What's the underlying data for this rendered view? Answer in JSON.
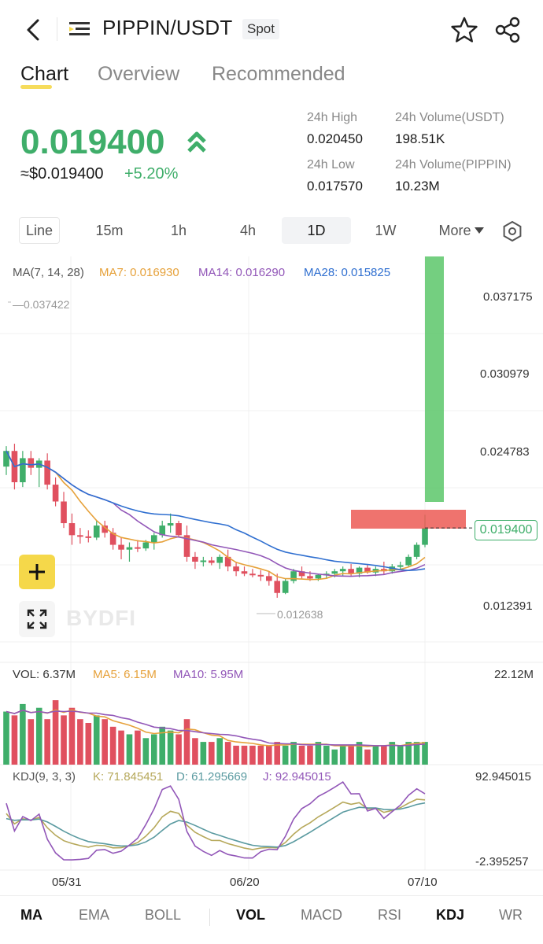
{
  "header": {
    "pair": "PIPPIN/USDT",
    "badge": "Spot"
  },
  "tabs": [
    {
      "label": "Chart",
      "active": true
    },
    {
      "label": "Overview",
      "active": false
    },
    {
      "label": "Recommended",
      "active": false
    }
  ],
  "price": {
    "last": "0.019400",
    "usd": "≈$0.019400",
    "change": "+5.20%"
  },
  "stats": {
    "high_label": "24h High",
    "high_value": "0.020450",
    "low_label": "24h Low",
    "low_value": "0.017570",
    "vol_usdt_label": "24h Volume(USDT)",
    "vol_usdt_value": "198.51K",
    "vol_pippin_label": "24h Volume(PIPPIN)",
    "vol_pippin_value": "10.23M"
  },
  "intervals": [
    "Line",
    "15m",
    "1h",
    "4h",
    "1D",
    "1W",
    "More"
  ],
  "active_interval": "1D",
  "ma_legend": {
    "title": "MA(7, 14, 28)",
    "ma7": "MA7: 0.016930",
    "ma14": "MA14: 0.016290",
    "ma28": "MA28: 0.015825"
  },
  "price_axis": [
    "0.037175",
    "0.030979",
    "0.024783",
    "0.012391"
  ],
  "current_price_tag": "0.019400",
  "max_marker": "0.037422",
  "min_marker": "0.012638",
  "watermark": "BYDFI",
  "vol_legend": {
    "vol": "VOL: 6.37M",
    "ma5": "MA5: 6.15M",
    "ma10": "MA10: 5.95M",
    "axis_max": "22.12M"
  },
  "kdj_legend": {
    "title": "KDJ(9, 3, 3)",
    "k": "K: 71.845451",
    "d": "D: 61.295669",
    "j": "J: 92.945015",
    "axis_max": "92.945015",
    "axis_min": "-2.395257"
  },
  "dates": [
    "05/31",
    "06/20",
    "07/10"
  ],
  "indicators": [
    "MA",
    "EMA",
    "BOLL",
    "VOL",
    "MACD",
    "RSI",
    "KDJ",
    "WR"
  ],
  "colors": {
    "up": "#3fae6a",
    "down": "#e0505f",
    "ma7": "#e6a13a",
    "ma14": "#9257b8",
    "ma28": "#2f6fd0",
    "accent": "#f5d84a"
  },
  "candles": {
    "ohlc_note": "",
    "data": [
      [
        0.0245,
        0.0262,
        0.0238,
        0.0258
      ],
      [
        0.0258,
        0.0264,
        0.0226,
        0.0232
      ],
      [
        0.0232,
        0.0258,
        0.0228,
        0.0252
      ],
      [
        0.0252,
        0.0258,
        0.0238,
        0.0244
      ],
      [
        0.0244,
        0.0252,
        0.0228,
        0.025
      ],
      [
        0.025,
        0.0256,
        0.0226,
        0.023
      ],
      [
        0.023,
        0.0236,
        0.0212,
        0.0216
      ],
      [
        0.0216,
        0.0224,
        0.0194,
        0.0198
      ],
      [
        0.0198,
        0.0206,
        0.018,
        0.0188
      ],
      [
        0.0188,
        0.0194,
        0.0181,
        0.0187
      ],
      [
        0.0187,
        0.0192,
        0.0182,
        0.0186
      ],
      [
        0.0186,
        0.02,
        0.0184,
        0.0196
      ],
      [
        0.0196,
        0.02,
        0.0186,
        0.019
      ],
      [
        0.019,
        0.0194,
        0.0176,
        0.018
      ],
      [
        0.018,
        0.0186,
        0.0168,
        0.0176
      ],
      [
        0.0176,
        0.0182,
        0.0166,
        0.0178
      ],
      [
        0.0178,
        0.0184,
        0.0174,
        0.0177
      ],
      [
        0.0177,
        0.0184,
        0.0175,
        0.0182
      ],
      [
        0.0182,
        0.019,
        0.0176,
        0.0188
      ],
      [
        0.0188,
        0.02,
        0.0186,
        0.0196
      ],
      [
        0.0196,
        0.0206,
        0.019,
        0.0198
      ],
      [
        0.0198,
        0.02,
        0.0186,
        0.0188
      ],
      [
        0.0188,
        0.0196,
        0.0166,
        0.017
      ],
      [
        0.017,
        0.0174,
        0.016,
        0.0166
      ],
      [
        0.0166,
        0.017,
        0.0162,
        0.0167
      ],
      [
        0.0167,
        0.017,
        0.0163,
        0.0165
      ],
      [
        0.0165,
        0.0172,
        0.016,
        0.017
      ],
      [
        0.017,
        0.0176,
        0.0158,
        0.0162
      ],
      [
        0.0162,
        0.0166,
        0.0154,
        0.0158
      ],
      [
        0.0158,
        0.0162,
        0.0154,
        0.0156
      ],
      [
        0.0156,
        0.016,
        0.0153,
        0.0155
      ],
      [
        0.0155,
        0.0159,
        0.015,
        0.0154
      ],
      [
        0.0154,
        0.0158,
        0.0146,
        0.015
      ],
      [
        0.015,
        0.0156,
        0.0136,
        0.014
      ],
      [
        0.014,
        0.0152,
        0.0139,
        0.015
      ],
      [
        0.015,
        0.016,
        0.0148,
        0.0158
      ],
      [
        0.0158,
        0.0162,
        0.0152,
        0.0154
      ],
      [
        0.0154,
        0.0158,
        0.015,
        0.0152
      ],
      [
        0.0152,
        0.0156,
        0.015,
        0.0155
      ],
      [
        0.0155,
        0.0158,
        0.0152,
        0.0156
      ],
      [
        0.0156,
        0.016,
        0.0153,
        0.0158
      ],
      [
        0.0158,
        0.0162,
        0.0154,
        0.016
      ],
      [
        0.016,
        0.0164,
        0.0154,
        0.0156
      ],
      [
        0.0156,
        0.0162,
        0.0153,
        0.0161
      ],
      [
        0.0161,
        0.0164,
        0.0156,
        0.0157
      ],
      [
        0.0157,
        0.0162,
        0.0154,
        0.016
      ],
      [
        0.016,
        0.0166,
        0.0155,
        0.0158
      ],
      [
        0.0158,
        0.0164,
        0.0156,
        0.0162
      ],
      [
        0.0162,
        0.0166,
        0.016,
        0.0163
      ],
      [
        0.0163,
        0.0172,
        0.0162,
        0.017
      ],
      [
        0.017,
        0.0182,
        0.0168,
        0.018
      ],
      [
        0.018,
        0.0205,
        0.0178,
        0.0194
      ]
    ],
    "volumes": [
      14,
      13,
      16,
      12,
      15,
      12,
      17,
      13,
      15,
      12,
      11,
      13,
      12,
      10,
      9,
      8,
      9,
      7,
      8,
      10,
      9,
      8,
      12,
      7,
      6,
      6,
      7,
      6,
      5,
      5,
      5,
      5,
      5,
      6,
      5,
      6,
      5,
      5,
      6,
      5,
      4,
      5,
      5,
      6,
      4,
      5,
      5,
      6,
      5,
      6,
      6,
      6
    ]
  }
}
